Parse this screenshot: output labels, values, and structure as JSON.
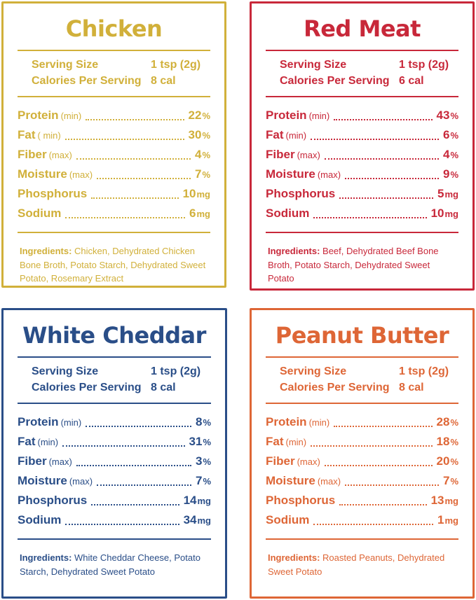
{
  "panels": [
    {
      "title": "Chicken",
      "color": "#d1b03a",
      "serving_size": {
        "label": "Serving Size",
        "value": "1 tsp (2g)"
      },
      "calories": {
        "label": "Calories Per Serving",
        "value": "8 cal"
      },
      "nutrients": [
        {
          "name": "Protein",
          "qualifier": "(min)",
          "value": "22",
          "unit": "%"
        },
        {
          "name": "Fat",
          "qualifier": "( min)",
          "value": "30",
          "unit": "%"
        },
        {
          "name": "Fiber",
          "qualifier": "(max)",
          "value": "4",
          "unit": "%"
        },
        {
          "name": "Moisture",
          "qualifier": "(max)",
          "value": "7",
          "unit": "%"
        },
        {
          "name": "Phosphorus",
          "value": "10",
          "unit": "mg"
        },
        {
          "name": "Sodium",
          "value": "6",
          "unit": "mg"
        }
      ],
      "ingredients": {
        "label": "Ingredients:",
        "text": "Chicken, Dehydrated Chicken Bone Broth, Potato Starch, Dehydrated Sweet Potato, Rosemary Extract"
      }
    },
    {
      "title": "Red Meat",
      "color": "#c8283a",
      "serving_size": {
        "label": "Serving Size",
        "value": "1 tsp (2g)"
      },
      "calories": {
        "label": "Calories Per Serving",
        "value": "6 cal"
      },
      "nutrients": [
        {
          "name": "Protein",
          "qualifier": "(min)",
          "value": "43",
          "unit": "%"
        },
        {
          "name": "Fat",
          "qualifier": "(min)",
          "value": "6",
          "unit": "%"
        },
        {
          "name": "Fiber",
          "qualifier": "(max)",
          "value": "4",
          "unit": "%"
        },
        {
          "name": "Moisture",
          "qualifier": "(max)",
          "value": "9",
          "unit": "%"
        },
        {
          "name": "Phosphorus",
          "value": "5",
          "unit": "mg"
        },
        {
          "name": "Sodium",
          "value": "10",
          "unit": "mg"
        }
      ],
      "ingredients": {
        "label": "Ingredients:",
        "text": "Beef, Dehydrated Beef Bone Broth, Potato Starch, Dehydrated Sweet Potato"
      }
    },
    {
      "title": "White Cheddar",
      "color": "#2a4e88",
      "serving_size": {
        "label": "Serving Size",
        "value": "1 tsp (2g)"
      },
      "calories": {
        "label": "Calories Per Serving",
        "value": "8 cal"
      },
      "nutrients": [
        {
          "name": "Protein",
          "qualifier": "(min)",
          "value": "8",
          "unit": "%"
        },
        {
          "name": "Fat",
          "qualifier": "(min)",
          "value": "31",
          "unit": "%"
        },
        {
          "name": "Fiber",
          "qualifier": "(max)",
          "value": "3",
          "unit": "%"
        },
        {
          "name": "Moisture",
          "qualifier": "(max)",
          "value": "7",
          "unit": "%"
        },
        {
          "name": "Phosphorus",
          "value": "14",
          "unit": "mg"
        },
        {
          "name": "Sodium",
          "value": "34",
          "unit": "mg"
        }
      ],
      "ingredients": {
        "label": "Ingredients:",
        "text": "White Cheddar Cheese, Potato Starch, Dehydrated Sweet Potato"
      }
    },
    {
      "title": "Peanut Butter",
      "color": "#de6636",
      "serving_size": {
        "label": "Serving Size",
        "value": "1 tsp (2g)"
      },
      "calories": {
        "label": "Calories Per Serving",
        "value": "8 cal"
      },
      "nutrients": [
        {
          "name": "Protein",
          "qualifier": "(min)",
          "value": "28",
          "unit": "%"
        },
        {
          "name": "Fat",
          "qualifier": "(min)",
          "value": "18",
          "unit": "%"
        },
        {
          "name": "Fiber",
          "qualifier": "(max)",
          "value": "20",
          "unit": "%"
        },
        {
          "name": "Moisture",
          "qualifier": "(max)",
          "value": "7",
          "unit": "%"
        },
        {
          "name": "Phosphorus",
          "value": "13",
          "unit": "mg"
        },
        {
          "name": "Sodium",
          "value": "1",
          "unit": "mg"
        }
      ],
      "ingredients": {
        "label": "Ingredients:",
        "text": "Roasted Peanuts, Dehydrated Sweet Potato"
      }
    }
  ]
}
